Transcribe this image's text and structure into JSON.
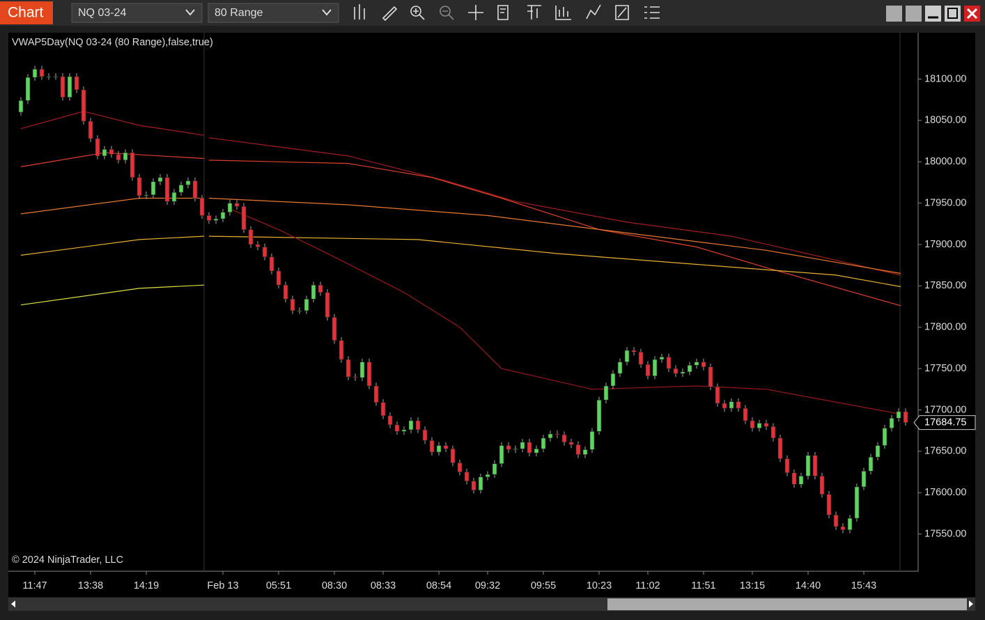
{
  "app": {
    "title": "Chart",
    "instrument": "NQ 03-24",
    "bar_type": "80 Range",
    "indicator_label": "VWAP5Day(NQ 03-24 (80 Range),false,true)",
    "copyright": "© 2024 NinjaTrader, LLC"
  },
  "chart_data": {
    "type": "candlestick",
    "categories": [
      null,
      null,
      "11:47",
      null,
      null,
      null,
      null,
      null,
      null,
      null,
      "13:38",
      null,
      null,
      null,
      null,
      null,
      null,
      null,
      "14:19",
      null,
      null,
      null,
      null,
      null,
      null,
      null,
      null,
      null,
      null,
      "Feb 13",
      null,
      null,
      null,
      null,
      null,
      null,
      null,
      "05:51",
      null,
      null,
      null,
      null,
      null,
      null,
      null,
      "08:30",
      null,
      null,
      null,
      null,
      null,
      null,
      "08:33",
      null,
      null,
      null,
      null,
      null,
      null,
      null,
      "08:54",
      null,
      null,
      null,
      null,
      null,
      null,
      "09:32",
      null,
      null,
      null,
      null,
      null,
      null,
      null,
      "09:55",
      null,
      null,
      null,
      null,
      null,
      null,
      null,
      "10:23",
      null,
      null,
      null,
      null,
      null,
      null,
      "11:02",
      null,
      null,
      null,
      null,
      null,
      null,
      null,
      "11:51",
      null,
      null,
      null,
      null,
      null,
      null,
      "13:15",
      null,
      null,
      null,
      null,
      null,
      null,
      null,
      "14:40",
      null,
      null,
      null,
      null,
      null,
      null,
      null,
      "15:43",
      null,
      null,
      null,
      null,
      null,
      null
    ],
    "open": [
      18060,
      18074,
      18102,
      18112,
      18103,
      18103,
      18103,
      18078,
      18103,
      18087,
      18049,
      18028,
      18007,
      18015,
      18009,
      18002,
      18011,
      17981,
      17959,
      17960,
      17976,
      17981,
      17952,
      17963,
      17972,
      17977,
      17956,
      17935,
      17929,
      17931,
      17939,
      17950,
      17946,
      17918,
      17900,
      17897,
      17885,
      17868,
      17851,
      17834,
      17820,
      17820,
      17834,
      17851,
      17842,
      17812,
      17784,
      17761,
      17740,
      17739,
      17758,
      17729,
      17709,
      17693,
      17682,
      17674,
      17676,
      17687,
      17676,
      17663,
      17649,
      17657,
      17653,
      17636,
      17625,
      17614,
      17603,
      17619,
      17622,
      17635,
      17657,
      17652,
      17653,
      17661,
      17648,
      17653,
      17666,
      17671,
      17670,
      17661,
      17658,
      17646,
      17652,
      17674,
      17712,
      17729,
      17744,
      17758,
      17772,
      17770,
      17755,
      17741,
      17761,
      17764,
      17750,
      17744,
      17746,
      17754,
      17758,
      17752,
      17728,
      17708,
      17702,
      17710,
      17702,
      17687,
      17678,
      17684,
      17680,
      17666,
      17641,
      17624,
      17610,
      17620,
      17645,
      17620,
      17598,
      17573,
      17559,
      17555,
      17569,
      17607,
      17626,
      17643,
      17657,
      17678,
      17690,
      17698
    ],
    "high": [
      18078,
      18106,
      18116,
      18116,
      18107,
      18107,
      18107,
      18107,
      18107,
      18091,
      18053,
      18032,
      18019,
      18019,
      18013,
      18015,
      18015,
      17985,
      17964,
      17980,
      17985,
      17985,
      17967,
      17976,
      17981,
      17981,
      17960,
      17939,
      17935,
      17943,
      17954,
      17954,
      17950,
      17922,
      17904,
      17901,
      17889,
      17872,
      17855,
      17838,
      17824,
      17838,
      17855,
      17855,
      17846,
      17816,
      17788,
      17765,
      17744,
      17762,
      17762,
      17733,
      17713,
      17697,
      17686,
      17680,
      17691,
      17691,
      17680,
      17667,
      17661,
      17661,
      17657,
      17640,
      17629,
      17618,
      17623,
      17626,
      17639,
      17661,
      17661,
      17657,
      17665,
      17665,
      17657,
      17670,
      17675,
      17675,
      17674,
      17665,
      17662,
      17656,
      17678,
      17716,
      17733,
      17748,
      17762,
      17776,
      17776,
      17774,
      17759,
      17765,
      17768,
      17768,
      17754,
      17750,
      17758,
      17762,
      17762,
      17756,
      17732,
      17712,
      17714,
      17714,
      17706,
      17691,
      17688,
      17688,
      17684,
      17670,
      17645,
      17628,
      17624,
      17649,
      17649,
      17624,
      17602,
      17577,
      17563,
      17573,
      17611,
      17630,
      17647,
      17661,
      17682,
      17694,
      17702,
      17702
    ],
    "low": [
      18056,
      18070,
      18098,
      18099,
      18099,
      18099,
      18074,
      18074,
      18083,
      18045,
      18024,
      18003,
      18003,
      18005,
      17998,
      17998,
      17977,
      17955,
      17955,
      17956,
      17972,
      17948,
      17948,
      17959,
      17968,
      17952,
      17931,
      17925,
      17925,
      17927,
      17935,
      17942,
      17914,
      17896,
      17893,
      17881,
      17864,
      17847,
      17830,
      17816,
      17816,
      17816,
      17830,
      17838,
      17808,
      17780,
      17757,
      17736,
      17735,
      17735,
      17725,
      17705,
      17689,
      17678,
      17670,
      17670,
      17672,
      17672,
      17659,
      17645,
      17645,
      17649,
      17632,
      17621,
      17610,
      17599,
      17599,
      17615,
      17618,
      17631,
      17648,
      17648,
      17649,
      17644,
      17644,
      17649,
      17662,
      17666,
      17657,
      17654,
      17642,
      17642,
      17648,
      17670,
      17708,
      17725,
      17740,
      17754,
      17766,
      17751,
      17737,
      17737,
      17757,
      17746,
      17740,
      17740,
      17742,
      17750,
      17748,
      17724,
      17704,
      17698,
      17698,
      17698,
      17683,
      17674,
      17674,
      17676,
      17662,
      17637,
      17620,
      17606,
      17606,
      17616,
      17616,
      17594,
      17569,
      17555,
      17551,
      17551,
      17565,
      17603,
      17622,
      17639,
      17653,
      17674,
      17686,
      17681
    ],
    "close": [
      18074,
      18102,
      18112,
      18103,
      18103,
      18103,
      18078,
      18103,
      18087,
      18049,
      18028,
      18007,
      18015,
      18009,
      18002,
      18011,
      17981,
      17959,
      17960,
      17976,
      17981,
      17952,
      17963,
      17972,
      17977,
      17956,
      17935,
      17929,
      17931,
      17939,
      17950,
      17946,
      17918,
      17900,
      17897,
      17885,
      17868,
      17851,
      17834,
      17820,
      17820,
      17834,
      17851,
      17842,
      17812,
      17784,
      17761,
      17740,
      17739,
      17758,
      17729,
      17709,
      17693,
      17682,
      17674,
      17676,
      17687,
      17676,
      17663,
      17649,
      17657,
      17653,
      17636,
      17625,
      17614,
      17603,
      17619,
      17622,
      17635,
      17657,
      17652,
      17653,
      17661,
      17648,
      17653,
      17666,
      17671,
      17670,
      17661,
      17658,
      17646,
      17652,
      17674,
      17712,
      17729,
      17744,
      17758,
      17772,
      17770,
      17755,
      17741,
      17761,
      17764,
      17750,
      17744,
      17746,
      17754,
      17758,
      17752,
      17728,
      17708,
      17702,
      17710,
      17702,
      17687,
      17678,
      17684,
      17680,
      17666,
      17641,
      17624,
      17610,
      17620,
      17645,
      17620,
      17598,
      17573,
      17559,
      17555,
      17569,
      17607,
      17626,
      17643,
      17657,
      17678,
      17690,
      17698,
      17684.75
    ],
    "up_color": "#5cd65c",
    "down_color": "#e8303a",
    "last_price": 17684.75,
    "ylim": [
      17505,
      18156
    ],
    "yticks": [
      {
        "value": 17550,
        "label": "17550.00"
      },
      {
        "value": 17600,
        "label": "17600.00"
      },
      {
        "value": 17650,
        "label": "17650.00"
      },
      {
        "value": 17700,
        "label": "17700.00"
      },
      {
        "value": 17750,
        "label": "17750.00"
      },
      {
        "value": 17800,
        "label": "17800.00"
      },
      {
        "value": 17850,
        "label": "17850.00"
      },
      {
        "value": 17900,
        "label": "17900.00"
      },
      {
        "value": 17950,
        "label": "17950.00"
      },
      {
        "value": 18000,
        "label": "18000.00"
      },
      {
        "value": 18050,
        "label": "18050.00"
      },
      {
        "value": 18100,
        "label": "18100.00"
      }
    ],
    "lines": [
      {
        "color": "#a51d1d",
        "x": [
          0,
          9,
          17,
          26.3,
          null,
          27,
          47,
          61,
          71,
          87,
          102,
          126.3
        ],
        "values": [
          18040,
          18061,
          18044,
          18032,
          null,
          18029,
          18007,
          17977,
          17952,
          17927,
          17910,
          17863
        ]
      },
      {
        "color": "#e0402a",
        "x": [
          0,
          12,
          26.3,
          null,
          27,
          47,
          59,
          69,
          83,
          97,
          107,
          126.3
        ],
        "values": [
          17994,
          18011,
          18004,
          null,
          18002,
          17998,
          17981,
          17956,
          17918,
          17897,
          17872,
          17826
        ]
      },
      {
        "color": "#e8782a",
        "x": [
          0,
          17,
          26.3,
          null,
          27,
          47,
          67,
          87,
          107,
          126.3
        ],
        "values": [
          17937,
          17956,
          17956,
          null,
          17956,
          17948,
          17935,
          17914,
          17893,
          17865
        ]
      },
      {
        "color": "#e8b030",
        "x": [
          0,
          17,
          26.3,
          null,
          27,
          57,
          77,
          97,
          117,
          126.3
        ],
        "values": [
          17887,
          17906,
          17910,
          null,
          17910,
          17906,
          17889,
          17876,
          17863,
          17849
        ]
      },
      {
        "color": "#e0e040",
        "x": [
          0,
          17,
          26.3
        ],
        "values": [
          17827,
          17847,
          17851
        ]
      },
      {
        "color": "#9a1818",
        "x": [
          30,
          37,
          45,
          55,
          63,
          69,
          82,
          97,
          107,
          126.3
        ],
        "values": [
          17943,
          17918,
          17885,
          17842,
          17800,
          17750,
          17725,
          17729,
          17725,
          17695
        ]
      }
    ]
  }
}
